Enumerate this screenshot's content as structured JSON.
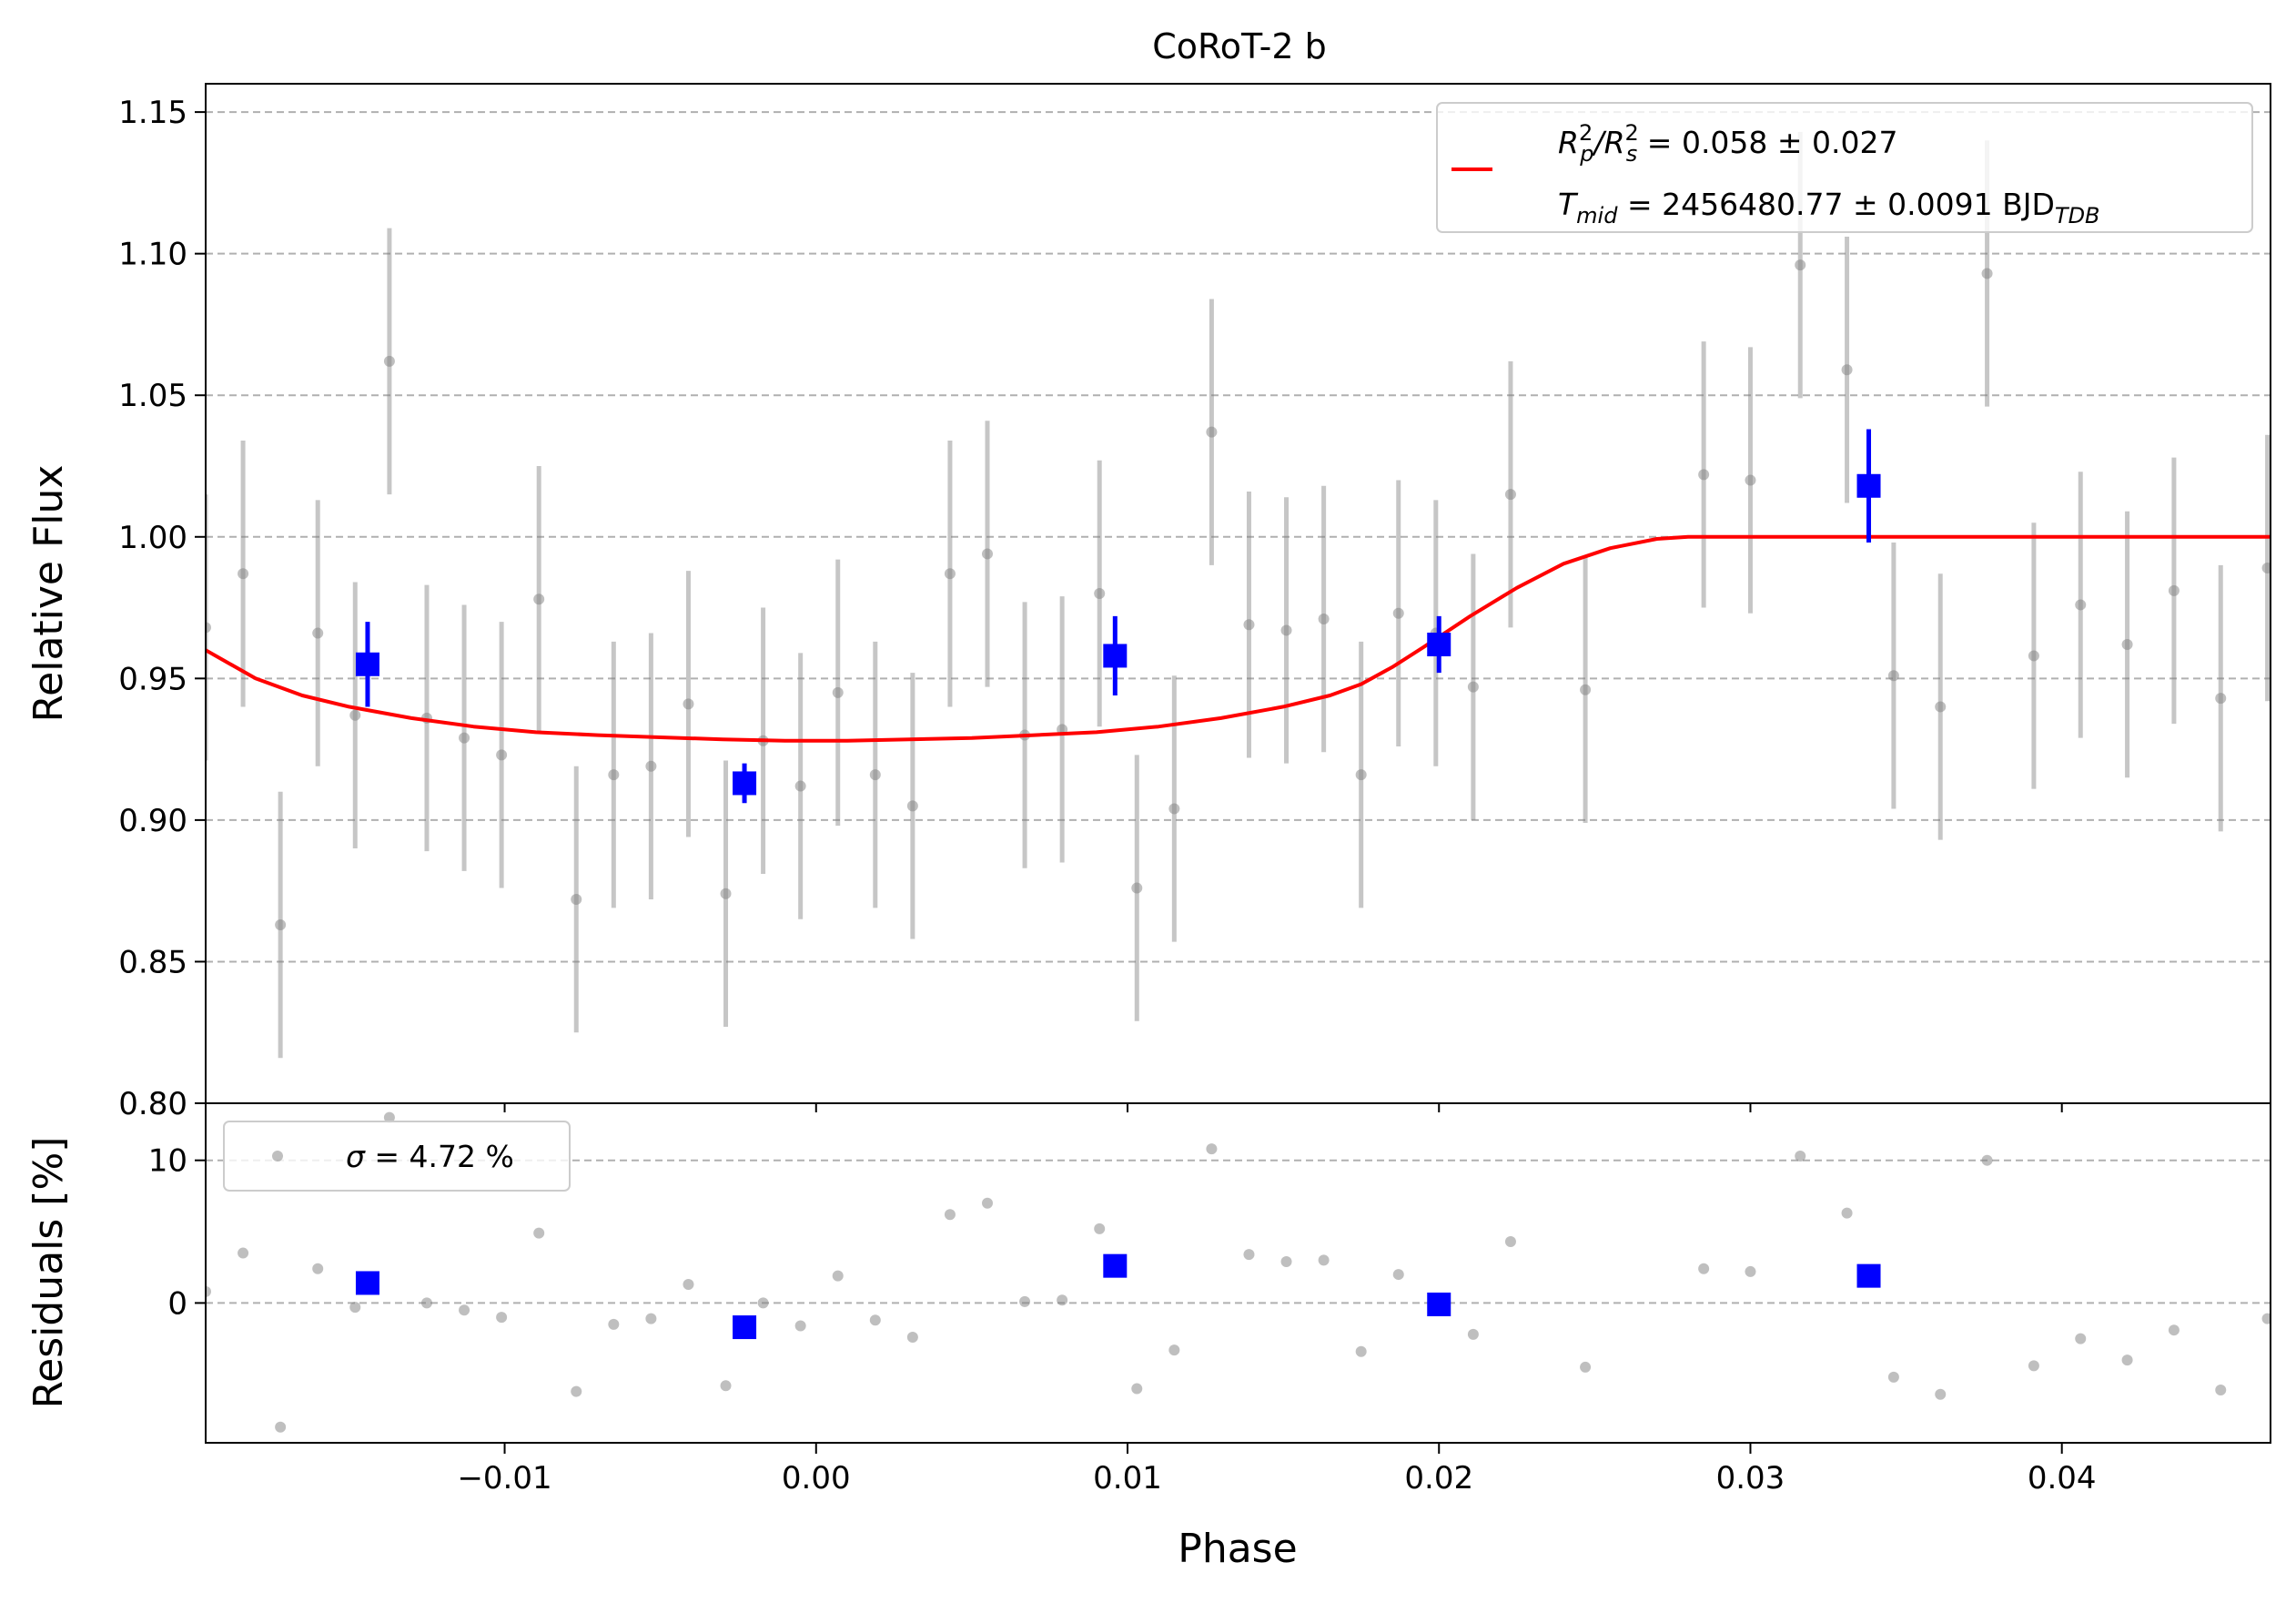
{
  "chart_data": {
    "type": "scatter",
    "title": "CoRoT-2 b",
    "xlabel": "Phase",
    "xlim": [
      -0.0196,
      0.0467
    ],
    "x_ticks": [
      -0.01,
      0.0,
      0.01,
      0.02,
      0.03,
      0.04
    ],
    "x_tick_labels": [
      "−0.01",
      "0.00",
      "0.01",
      "0.02",
      "0.03",
      "0.04"
    ],
    "grid": "horizontal-dashed",
    "top_panel": {
      "ylabel": "Relative Flux",
      "ylim": [
        0.8,
        1.16
      ],
      "y_ticks": [
        0.8,
        0.85,
        0.9,
        0.95,
        1.0,
        1.05,
        1.1,
        1.15
      ],
      "y_tick_labels": [
        "0.80",
        "0.85",
        "0.90",
        "0.95",
        "1.00",
        "1.05",
        "1.10",
        "1.15"
      ],
      "legend": {
        "placement": "top-right",
        "line1_parts": [
          {
            "t": "R",
            "s": "i"
          },
          {
            "t": "2",
            "s": "sup"
          },
          {
            "t": "p",
            "s": "sub"
          },
          {
            "t": "/",
            "s": "i"
          },
          {
            "t": "R",
            "s": "i"
          },
          {
            "t": "2",
            "s": "sup"
          },
          {
            "t": "s",
            "s": "sub"
          },
          {
            "t": " = 0.058 ± 0.027",
            "s": "n"
          }
        ],
        "line2_parts": [
          {
            "t": "T",
            "s": "i"
          },
          {
            "t": "mid",
            "s": "sub"
          },
          {
            "t": " = 2456480.77 ± 0.0091 BJD",
            "s": "n"
          },
          {
            "t": "TDB",
            "s": "sub"
          }
        ]
      },
      "model_color": "#ff0000",
      "model_curve": {
        "x": [
          -0.0196,
          -0.018,
          -0.0165,
          -0.015,
          -0.013,
          -0.011,
          -0.009,
          -0.007,
          -0.005,
          -0.003,
          -0.001,
          0.0,
          0.001,
          0.003,
          0.005,
          0.007,
          0.009,
          0.011,
          0.013,
          0.015,
          0.0165,
          0.0175,
          0.0185,
          0.0195,
          0.021,
          0.0225,
          0.024,
          0.0255,
          0.027,
          0.028,
          0.0285,
          0.035,
          0.0467
        ],
        "y": [
          0.96,
          0.95,
          0.944,
          0.94,
          0.936,
          0.933,
          0.931,
          0.93,
          0.9292,
          0.9285,
          0.928,
          0.928,
          0.928,
          0.9285,
          0.929,
          0.93,
          0.931,
          0.933,
          0.936,
          0.94,
          0.944,
          0.948,
          0.954,
          0.961,
          0.972,
          0.982,
          0.9905,
          0.996,
          0.9993,
          1.0,
          1.0,
          1.0,
          1.0
        ]
      },
      "unbinned_color": "#808080",
      "unbinned": [
        {
          "x": -0.0196,
          "y": 0.968,
          "e": 0.047
        },
        {
          "x": -0.0184,
          "y": 0.987,
          "e": 0.047
        },
        {
          "x": -0.0172,
          "y": 0.863,
          "e": 0.047
        },
        {
          "x": -0.016,
          "y": 0.966,
          "e": 0.047
        },
        {
          "x": -0.0148,
          "y": 0.937,
          "e": 0.047
        },
        {
          "x": -0.0137,
          "y": 1.062,
          "e": 0.047
        },
        {
          "x": -0.0125,
          "y": 0.936,
          "e": 0.047
        },
        {
          "x": -0.0113,
          "y": 0.929,
          "e": 0.047
        },
        {
          "x": -0.0101,
          "y": 0.923,
          "e": 0.047
        },
        {
          "x": -0.0089,
          "y": 0.978,
          "e": 0.047
        },
        {
          "x": -0.0077,
          "y": 0.872,
          "e": 0.047
        },
        {
          "x": -0.0065,
          "y": 0.916,
          "e": 0.047
        },
        {
          "x": -0.0053,
          "y": 0.919,
          "e": 0.047
        },
        {
          "x": -0.0041,
          "y": 0.941,
          "e": 0.047
        },
        {
          "x": -0.0029,
          "y": 0.874,
          "e": 0.047
        },
        {
          "x": -0.0017,
          "y": 0.928,
          "e": 0.047
        },
        {
          "x": -0.0005,
          "y": 0.912,
          "e": 0.047
        },
        {
          "x": 0.0007,
          "y": 0.945,
          "e": 0.047
        },
        {
          "x": 0.0019,
          "y": 0.916,
          "e": 0.047
        },
        {
          "x": 0.0031,
          "y": 0.905,
          "e": 0.047
        },
        {
          "x": 0.0043,
          "y": 0.987,
          "e": 0.047
        },
        {
          "x": 0.0055,
          "y": 0.994,
          "e": 0.047
        },
        {
          "x": 0.0067,
          "y": 0.93,
          "e": 0.047
        },
        {
          "x": 0.0079,
          "y": 0.932,
          "e": 0.047
        },
        {
          "x": 0.0091,
          "y": 0.98,
          "e": 0.047
        },
        {
          "x": 0.0103,
          "y": 0.876,
          "e": 0.047
        },
        {
          "x": 0.0115,
          "y": 0.904,
          "e": 0.047
        },
        {
          "x": 0.0127,
          "y": 1.037,
          "e": 0.047
        },
        {
          "x": 0.0139,
          "y": 0.969,
          "e": 0.047
        },
        {
          "x": 0.0151,
          "y": 0.967,
          "e": 0.047
        },
        {
          "x": 0.0163,
          "y": 0.971,
          "e": 0.047
        },
        {
          "x": 0.0175,
          "y": 0.916,
          "e": 0.047
        },
        {
          "x": 0.0187,
          "y": 0.973,
          "e": 0.047
        },
        {
          "x": 0.0199,
          "y": 0.966,
          "e": 0.047
        },
        {
          "x": 0.0211,
          "y": 0.947,
          "e": 0.047
        },
        {
          "x": 0.0223,
          "y": 1.015,
          "e": 0.047
        },
        {
          "x": 0.0247,
          "y": 0.946,
          "e": 0.047
        },
        {
          "x": 0.0285,
          "y": 1.022,
          "e": 0.047
        },
        {
          "x": 0.03,
          "y": 1.02,
          "e": 0.047
        },
        {
          "x": 0.0316,
          "y": 1.096,
          "e": 0.047
        },
        {
          "x": 0.0331,
          "y": 1.059,
          "e": 0.047
        },
        {
          "x": 0.0346,
          "y": 0.951,
          "e": 0.047
        },
        {
          "x": 0.0361,
          "y": 0.94,
          "e": 0.047
        },
        {
          "x": 0.0376,
          "y": 1.093,
          "e": 0.047
        },
        {
          "x": 0.0391,
          "y": 0.958,
          "e": 0.047
        },
        {
          "x": 0.0406,
          "y": 0.976,
          "e": 0.047
        },
        {
          "x": 0.0421,
          "y": 0.962,
          "e": 0.047
        },
        {
          "x": 0.0436,
          "y": 0.981,
          "e": 0.047
        },
        {
          "x": 0.0451,
          "y": 0.943,
          "e": 0.047
        },
        {
          "x": 0.0466,
          "y": 0.989,
          "e": 0.047
        }
      ],
      "binned_color": "#0000ff",
      "binned": [
        {
          "x": -0.0144,
          "y": 0.955,
          "e": 0.015
        },
        {
          "x": -0.0023,
          "y": 0.913,
          "e": 0.007
        },
        {
          "x": 0.0096,
          "y": 0.958,
          "e": 0.014
        },
        {
          "x": 0.02,
          "y": 0.962,
          "e": 0.01
        },
        {
          "x": 0.0338,
          "y": 1.018,
          "e": 0.02
        }
      ]
    },
    "bottom_panel": {
      "ylabel": "Residuals [%]",
      "ylim": [
        -9.8,
        14.0
      ],
      "y_ticks": [
        0,
        10
      ],
      "y_tick_labels": [
        "0",
        "10"
      ],
      "legend": {
        "placement": "top-left",
        "sigma_symbol": "σ",
        "sigma_text": " = 4.72 %"
      },
      "unbinned": [
        {
          "x": -0.0196,
          "y": 0.8
        },
        {
          "x": -0.0184,
          "y": 3.5
        },
        {
          "x": -0.0172,
          "y": -8.7
        },
        {
          "x": -0.016,
          "y": 2.4
        },
        {
          "x": -0.0148,
          "y": -0.3
        },
        {
          "x": -0.0137,
          "y": 13.0
        },
        {
          "x": -0.0125,
          "y": 0.0
        },
        {
          "x": -0.0113,
          "y": -0.5
        },
        {
          "x": -0.0101,
          "y": -1.0
        },
        {
          "x": -0.0089,
          "y": 4.9
        },
        {
          "x": -0.0077,
          "y": -6.2
        },
        {
          "x": -0.0065,
          "y": -1.5
        },
        {
          "x": -0.0053,
          "y": -1.1
        },
        {
          "x": -0.0041,
          "y": 1.3
        },
        {
          "x": -0.0029,
          "y": -5.8
        },
        {
          "x": -0.0017,
          "y": 0.0
        },
        {
          "x": -0.0005,
          "y": -1.6
        },
        {
          "x": 0.0007,
          "y": 1.9
        },
        {
          "x": 0.0019,
          "y": -1.2
        },
        {
          "x": 0.0031,
          "y": -2.4
        },
        {
          "x": 0.0043,
          "y": 6.2
        },
        {
          "x": 0.0055,
          "y": 7.0
        },
        {
          "x": 0.0067,
          "y": 0.1
        },
        {
          "x": 0.0079,
          "y": 0.2
        },
        {
          "x": 0.0091,
          "y": 5.2
        },
        {
          "x": 0.0103,
          "y": -6.0
        },
        {
          "x": 0.0115,
          "y": -3.3
        },
        {
          "x": 0.0127,
          "y": 10.8
        },
        {
          "x": 0.0139,
          "y": 3.4
        },
        {
          "x": 0.0151,
          "y": 2.9
        },
        {
          "x": 0.0163,
          "y": 3.0
        },
        {
          "x": 0.0175,
          "y": -3.4
        },
        {
          "x": 0.0187,
          "y": 2.0
        },
        {
          "x": 0.0199,
          "y": 0.1
        },
        {
          "x": 0.0211,
          "y": -2.2
        },
        {
          "x": 0.0223,
          "y": 4.3
        },
        {
          "x": 0.0247,
          "y": -4.5
        },
        {
          "x": 0.0285,
          "y": 2.4
        },
        {
          "x": 0.03,
          "y": 2.2
        },
        {
          "x": 0.0316,
          "y": 10.3
        },
        {
          "x": 0.0331,
          "y": 6.3
        },
        {
          "x": 0.0346,
          "y": -5.2
        },
        {
          "x": 0.0361,
          "y": -6.4
        },
        {
          "x": 0.0376,
          "y": 10.0
        },
        {
          "x": 0.0391,
          "y": -4.4
        },
        {
          "x": 0.0406,
          "y": -2.5
        },
        {
          "x": 0.0421,
          "y": -4.0
        },
        {
          "x": 0.0436,
          "y": -1.9
        },
        {
          "x": 0.0451,
          "y": -6.1
        },
        {
          "x": 0.0466,
          "y": -1.1
        }
      ],
      "binned": [
        {
          "x": -0.0144,
          "y": 1.4
        },
        {
          "x": -0.0023,
          "y": -1.7
        },
        {
          "x": 0.0096,
          "y": 2.6
        },
        {
          "x": 0.02,
          "y": -0.1
        },
        {
          "x": 0.0338,
          "y": 1.9
        }
      ]
    }
  }
}
